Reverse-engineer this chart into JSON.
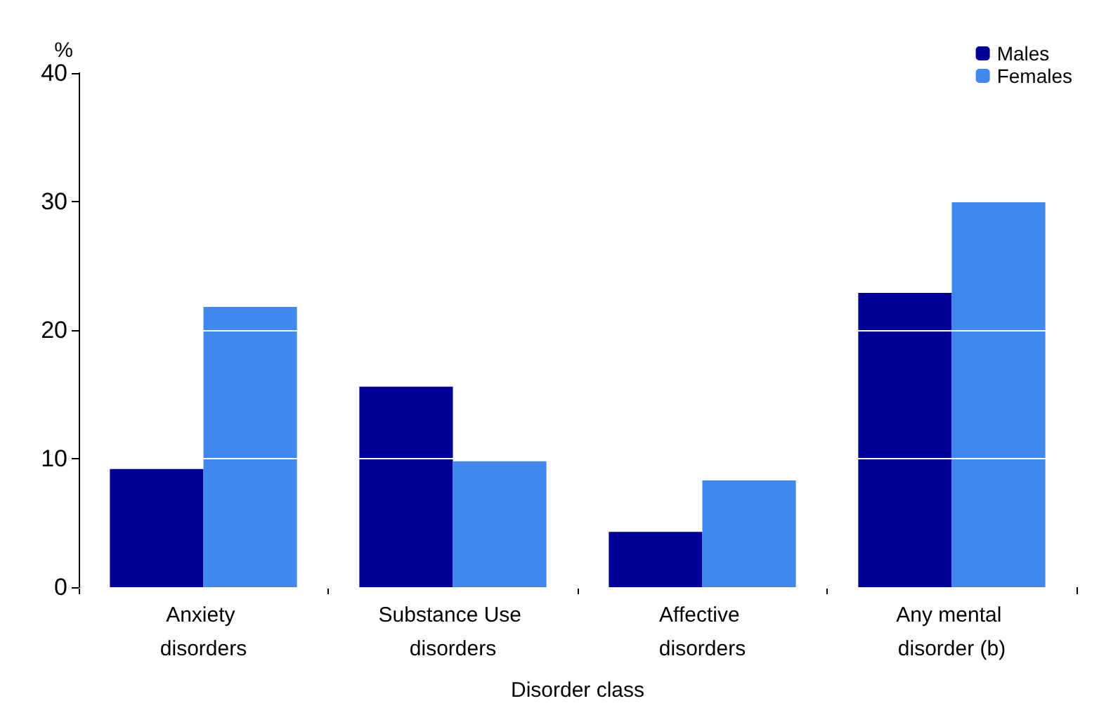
{
  "chart_data": {
    "type": "bar",
    "xlabel": "Disorder class",
    "ylabel": "%",
    "categories": [
      "Anxiety disorders",
      "Substance Use disorders",
      "Affective disorders",
      "Any mental disorder (b)"
    ],
    "series": [
      {
        "name": "Males",
        "color": "#000099",
        "values": [
          9.2,
          15.6,
          4.3,
          22.9
        ]
      },
      {
        "name": "Females",
        "color": "#4088f0",
        "values": [
          21.8,
          9.8,
          8.3,
          30
        ]
      }
    ],
    "ylim": [
      0,
      40
    ],
    "yticks": [
      0,
      10,
      20,
      30,
      40
    ],
    "grid": "y",
    "legend": "top right"
  }
}
